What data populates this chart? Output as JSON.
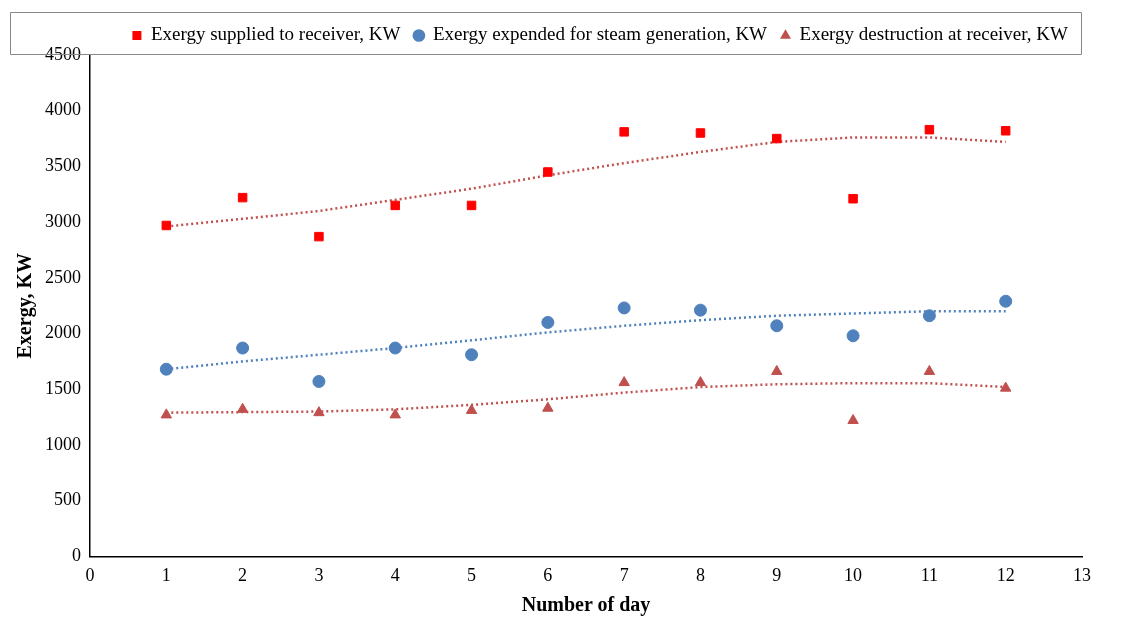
{
  "chart_data": {
    "type": "scatter",
    "xlabel": "Number of day",
    "ylabel": "Exergy, KW",
    "xlim": [
      0,
      13
    ],
    "xticks": [
      0,
      1,
      2,
      3,
      4,
      5,
      6,
      7,
      8,
      9,
      10,
      11,
      12,
      13
    ],
    "ylim": [
      0,
      4500
    ],
    "yticks": [
      0,
      500,
      1000,
      1500,
      2000,
      2500,
      3000,
      3500,
      4000,
      4500
    ],
    "grid": false,
    "legend": "top right",
    "series": [
      {
        "name": "Exergy supplied to receiver, KW",
        "color": "#ff0000",
        "marker": "square",
        "x": [
          1,
          2,
          3,
          4,
          5,
          6,
          7,
          8,
          9,
          10,
          11,
          12
        ],
        "values": [
          2970,
          3220,
          2870,
          3150,
          3150,
          3450,
          3810,
          3800,
          3750,
          3210,
          3830,
          3820
        ]
      },
      {
        "name": "Exergy expended for steam generation, KW",
        "color": "#4f81bd",
        "marker": "circle",
        "x": [
          1,
          2,
          3,
          4,
          5,
          6,
          7,
          8,
          9,
          10,
          11,
          12
        ],
        "values": [
          1680,
          1870,
          1570,
          1870,
          1810,
          2100,
          2230,
          2210,
          2070,
          1980,
          2160,
          2290
        ]
      },
      {
        "name": "Exergy destruction at receiver, KW",
        "color": "#c0504d",
        "marker": "triangle",
        "x": [
          1,
          2,
          3,
          4,
          5,
          6,
          7,
          8,
          9,
          10,
          11,
          12
        ],
        "values": [
          1270,
          1320,
          1290,
          1270,
          1310,
          1330,
          1560,
          1560,
          1660,
          1220,
          1660,
          1510
        ]
      },
      {
        "type": "line",
        "color": "#c0504d",
        "marker": "none",
        "line_style": "dotted",
        "x": [
          1,
          2,
          3,
          4,
          5,
          6,
          7,
          8,
          9,
          10,
          11,
          12
        ],
        "values": [
          2960,
          3030,
          3100,
          3200,
          3300,
          3420,
          3530,
          3630,
          3720,
          3760,
          3760,
          3720
        ]
      },
      {
        "type": "line",
        "color": "#4f81bd",
        "marker": "none",
        "line_style": "dotted",
        "x": [
          1,
          2,
          3,
          4,
          5,
          6,
          7,
          8,
          9,
          10,
          11,
          12
        ],
        "values": [
          1680,
          1750,
          1810,
          1870,
          1940,
          2010,
          2070,
          2120,
          2160,
          2180,
          2200,
          2200
        ]
      },
      {
        "type": "line",
        "color": "#c0504d",
        "marker": "none",
        "line_style": "dotted",
        "x": [
          1,
          2,
          3,
          4,
          5,
          6,
          7,
          8,
          9,
          10,
          11,
          12
        ],
        "values": [
          1290,
          1295,
          1300,
          1320,
          1360,
          1410,
          1470,
          1520,
          1545,
          1555,
          1555,
          1520
        ]
      }
    ]
  }
}
